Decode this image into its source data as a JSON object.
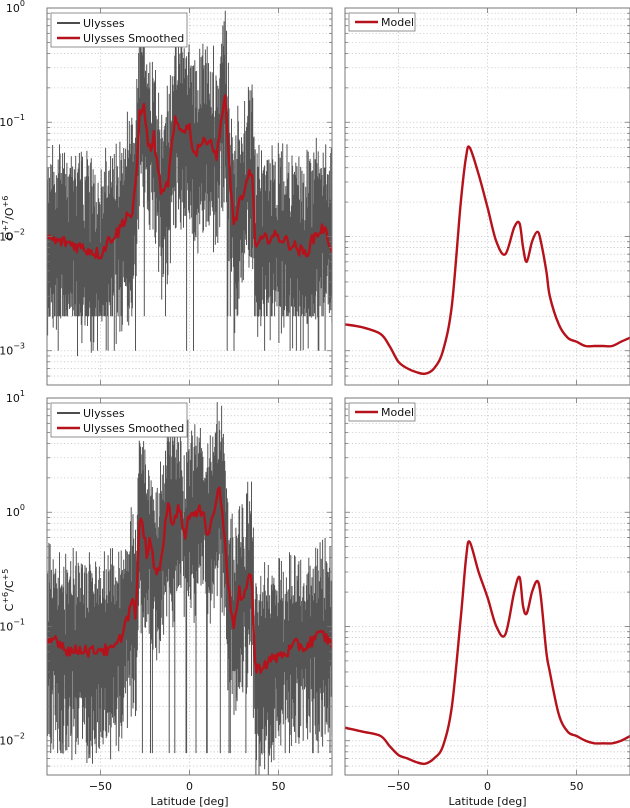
{
  "chart_data": [
    {
      "panel": "top-left",
      "type": "line",
      "ylabel": "O+7/O+6",
      "yscale": "log",
      "ylim": [
        0.0005,
        1
      ],
      "yticks": [
        "10^-3",
        "10^-2",
        "10^-1",
        "10^0"
      ],
      "xlim": [
        -80,
        80
      ],
      "xticks": [
        -50,
        0,
        50
      ],
      "xlabel": "",
      "grid": true,
      "legend": [
        "Ulysses",
        "Ulysses Smoothed"
      ],
      "series": [
        {
          "name": "Ulysses",
          "color": "#555555",
          "note": "noisy data, range ~0.001 to 0.35"
        },
        {
          "name": "Ulysses Smoothed",
          "color": "#b5121b",
          "x": [
            -80,
            -75,
            -70,
            -65,
            -60,
            -55,
            -50,
            -45,
            -40,
            -35,
            -32,
            -30,
            -28,
            -26,
            -24,
            -22,
            -20,
            -18,
            -15,
            -12,
            -10,
            -8,
            -5,
            -3,
            0,
            3,
            5,
            8,
            10,
            13,
            15,
            17,
            20,
            22,
            25,
            28,
            30,
            33,
            35,
            37,
            40,
            45,
            50,
            55,
            60,
            65,
            70,
            75,
            80
          ],
          "y": [
            0.01,
            0.009,
            0.009,
            0.0085,
            0.008,
            0.0075,
            0.007,
            0.0095,
            0.011,
            0.016,
            0.015,
            0.03,
            0.12,
            0.15,
            0.08,
            0.055,
            0.075,
            0.04,
            0.022,
            0.03,
            0.06,
            0.1,
            0.085,
            0.09,
            0.09,
            0.05,
            0.065,
            0.065,
            0.075,
            0.065,
            0.045,
            0.09,
            0.16,
            0.05,
            0.012,
            0.02,
            0.02,
            0.035,
            0.04,
            0.008,
            0.009,
            0.01,
            0.01,
            0.009,
            0.008,
            0.007,
            0.01,
            0.012,
            0.008
          ]
        }
      ]
    },
    {
      "panel": "top-right",
      "type": "line",
      "yscale": "log",
      "ylim": [
        0.0005,
        1
      ],
      "xlim": [
        -80,
        80
      ],
      "xticks": [
        -50,
        0,
        50
      ],
      "grid": true,
      "legend": [
        "Model"
      ],
      "series": [
        {
          "name": "Model",
          "color": "#b5121b",
          "x": [
            -80,
            -70,
            -60,
            -55,
            -50,
            -45,
            -40,
            -35,
            -30,
            -25,
            -20,
            -15,
            -12,
            -10,
            -5,
            0,
            5,
            10,
            15,
            18,
            20,
            22,
            25,
            28,
            30,
            33,
            35,
            40,
            45,
            50,
            55,
            60,
            65,
            70,
            75,
            80
          ],
          "y": [
            0.0017,
            0.0016,
            0.0014,
            0.0011,
            0.0008,
            0.0007,
            0.00065,
            0.00063,
            0.0007,
            0.001,
            0.0025,
            0.02,
            0.05,
            0.06,
            0.035,
            0.018,
            0.009,
            0.007,
            0.012,
            0.013,
            0.008,
            0.006,
            0.009,
            0.011,
            0.009,
            0.005,
            0.003,
            0.0017,
            0.0013,
            0.0012,
            0.0011,
            0.0011,
            0.0011,
            0.0011,
            0.0012,
            0.0013
          ]
        }
      ]
    },
    {
      "panel": "bottom-left",
      "type": "line",
      "ylabel": "C+6/C+5",
      "yscale": "log",
      "ylim": [
        0.005,
        10
      ],
      "yticks": [
        "10^-2",
        "10^-1",
        "10^0",
        "10^1"
      ],
      "xlim": [
        -80,
        80
      ],
      "xticks": [
        -50,
        0,
        50
      ],
      "xlabel": "Latitude [deg]",
      "grid": true,
      "legend": [
        "Ulysses",
        "Ulysses Smoothed"
      ],
      "series": [
        {
          "name": "Ulysses",
          "color": "#555555",
          "note": "noisy data, range ~0.006 to 5"
        },
        {
          "name": "Ulysses Smoothed",
          "color": "#b5121b",
          "x": [
            -80,
            -75,
            -70,
            -65,
            -60,
            -55,
            -50,
            -45,
            -40,
            -35,
            -32,
            -30,
            -28,
            -26,
            -24,
            -22,
            -20,
            -18,
            -15,
            -12,
            -10,
            -8,
            -5,
            -3,
            0,
            3,
            5,
            8,
            10,
            13,
            15,
            17,
            20,
            22,
            25,
            28,
            30,
            33,
            35,
            37,
            40,
            45,
            50,
            55,
            60,
            65,
            70,
            75,
            80
          ],
          "y": [
            0.07,
            0.08,
            0.065,
            0.06,
            0.065,
            0.06,
            0.065,
            0.06,
            0.07,
            0.12,
            0.17,
            0.12,
            0.9,
            0.7,
            0.45,
            0.55,
            0.35,
            0.28,
            0.5,
            1.2,
            0.8,
            1.0,
            1.1,
            0.6,
            1.0,
            0.9,
            1.0,
            1.1,
            0.6,
            0.9,
            1.3,
            1.6,
            0.6,
            0.2,
            0.1,
            0.2,
            0.15,
            0.3,
            0.25,
            0.04,
            0.045,
            0.05,
            0.055,
            0.06,
            0.07,
            0.065,
            0.08,
            0.085,
            0.07
          ]
        }
      ]
    },
    {
      "panel": "bottom-right",
      "type": "line",
      "yscale": "log",
      "ylim": [
        0.005,
        10
      ],
      "xlim": [
        -80,
        80
      ],
      "xticks": [
        -50,
        0,
        50
      ],
      "xlabel": "Latitude [deg]",
      "grid": true,
      "legend": [
        "Model"
      ],
      "series": [
        {
          "name": "Model",
          "color": "#b5121b",
          "x": [
            -80,
            -70,
            -60,
            -55,
            -50,
            -45,
            -40,
            -35,
            -30,
            -25,
            -20,
            -15,
            -12,
            -10,
            -5,
            0,
            5,
            10,
            15,
            18,
            20,
            22,
            25,
            28,
            30,
            33,
            35,
            40,
            45,
            50,
            55,
            60,
            65,
            70,
            75,
            80
          ],
          "y": [
            0.013,
            0.012,
            0.011,
            0.009,
            0.0075,
            0.007,
            0.0065,
            0.0063,
            0.007,
            0.009,
            0.02,
            0.12,
            0.4,
            0.55,
            0.3,
            0.18,
            0.1,
            0.085,
            0.2,
            0.27,
            0.15,
            0.13,
            0.2,
            0.25,
            0.18,
            0.06,
            0.04,
            0.017,
            0.012,
            0.011,
            0.01,
            0.0095,
            0.0095,
            0.0095,
            0.01,
            0.011
          ]
        }
      ]
    }
  ],
  "labels": {
    "ylabel_top_base": "O",
    "ylabel_top_sup1": "+7",
    "ylabel_top_mid": "/O",
    "ylabel_top_sup2": "+6",
    "ylabel_bottom_base": "C",
    "ylabel_bottom_sup1": "+6",
    "ylabel_bottom_mid": "/C",
    "ylabel_bottom_sup2": "+5",
    "xlabel": "Latitude [deg]",
    "legend_ulysses": "Ulysses",
    "legend_smoothed": "Ulysses Smoothed",
    "legend_model": "Model",
    "xtick_m50": "−50",
    "xtick_0": "0",
    "xtick_50": "50",
    "ytick_base": "10",
    "top_exp": [
      "0",
      "−1",
      "−2",
      "−3"
    ],
    "bottom_exp": [
      "1",
      "0",
      "−1",
      "−2"
    ]
  },
  "colors": {
    "data": "#555555",
    "smoothed": "#b5121b",
    "model": "#b5121b",
    "grid": "#c8c8c8",
    "axis": "#777777"
  }
}
